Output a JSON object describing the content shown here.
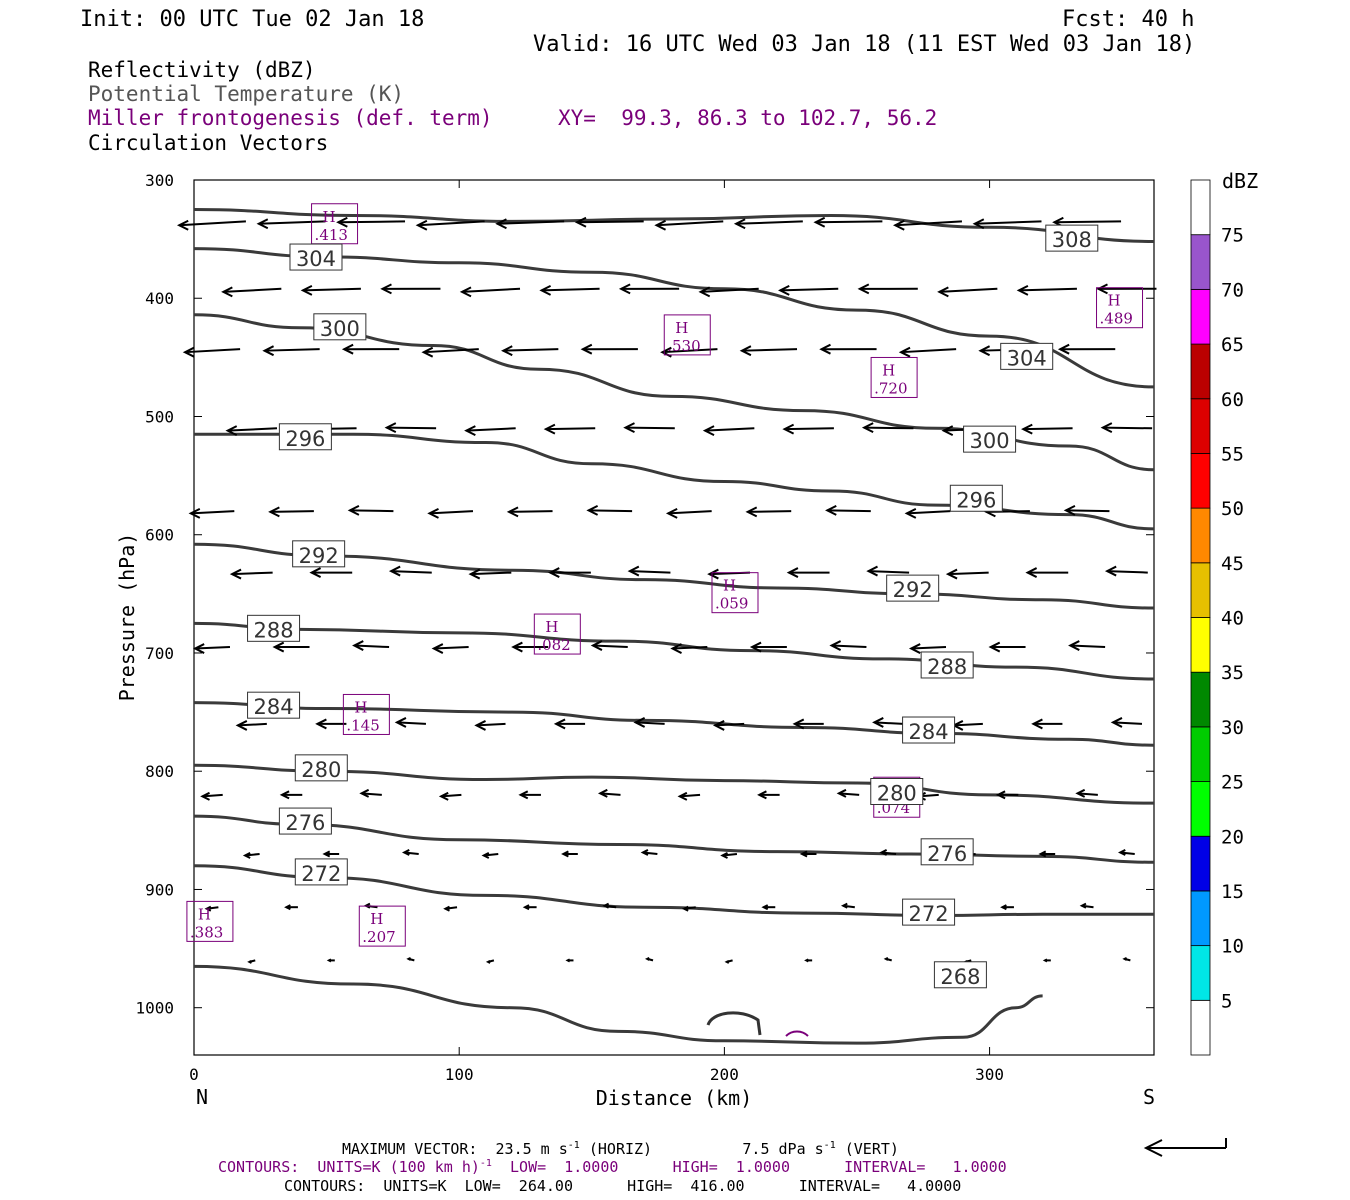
{
  "header": {
    "init": "Init: 00 UTC Tue 02 Jan 18",
    "fcst": "Fcst:   40 h",
    "valid": "Valid: 16 UTC Wed 03 Jan 18 (11 EST Wed 03 Jan 18)",
    "fields": [
      {
        "text": "Reflectivity (dBZ)",
        "color": "#000000"
      },
      {
        "text": "Potential Temperature (K)",
        "color": "#555555"
      },
      {
        "text": "Miller frontogenesis (def. term)",
        "color": "#7a007a"
      },
      {
        "text": "Circulation Vectors",
        "color": "#000000"
      }
    ],
    "xy": "XY=  99.3, 86.3 to 102.7, 56.2"
  },
  "footer": {
    "max_vector": "MAXIMUM VECTOR:  23.5 m s",
    "max_vector_mid": " (HORIZ)          7.5 dPa s",
    "max_vector_end": " (VERT)",
    "contours_fg": "CONTOURS:  UNITS=K (100 km h)",
    "contours_fg_end": "  LOW=  1.0000      HIGH=  1.0000      INTERVAL=   1.0000",
    "contours_theta": "CONTOURS:  UNITS=K  LOW=  264.00      HIGH=  416.00      INTERVAL=   4.0000",
    "sup": "-1"
  },
  "colorbar": {
    "title": "dBZ",
    "levels": [
      "5",
      "10",
      "15",
      "20",
      "25",
      "30",
      "35",
      "40",
      "45",
      "50",
      "55",
      "60",
      "65",
      "70",
      "75"
    ],
    "colors": [
      "#00e6e6",
      "#0099ff",
      "#0000e6",
      "#00ff00",
      "#00cc00",
      "#008800",
      "#ffff00",
      "#e6c000",
      "#ff8800",
      "#ff0000",
      "#dd0000",
      "#bb0000",
      "#ff00ff",
      "#9955cc",
      "#ffffff"
    ]
  },
  "chart_data": {
    "type": "line",
    "title": "",
    "xlabel": "Distance (km)",
    "ylabel": "Pressure (hPa)",
    "xlim": [
      0,
      362
    ],
    "ylim": [
      300,
      1040
    ],
    "x_ticks": [
      "0",
      "100",
      "200",
      "300"
    ],
    "y_ticks": [
      "300",
      "400",
      "500",
      "600",
      "700",
      "800",
      "900",
      "1000"
    ],
    "left_end_label": "N",
    "right_end_label": "S",
    "isentropes": [
      {
        "label": "308",
        "points": [
          [
            0,
            325
          ],
          [
            60,
            330
          ],
          [
            120,
            335
          ],
          [
            180,
            333
          ],
          [
            240,
            330
          ],
          [
            300,
            340
          ],
          [
            362,
            352
          ]
        ],
        "labels": [
          [
            331,
            350
          ]
        ]
      },
      {
        "label": "304",
        "points": [
          [
            0,
            358
          ],
          [
            50,
            365
          ],
          [
            100,
            370
          ],
          [
            150,
            378
          ],
          [
            200,
            392
          ],
          [
            250,
            410
          ],
          [
            300,
            432
          ],
          [
            362,
            475
          ]
        ],
        "labels": [
          [
            46,
            366
          ],
          [
            314,
            450
          ]
        ]
      },
      {
        "label": "300",
        "points": [
          [
            0,
            414
          ],
          [
            40,
            425
          ],
          [
            90,
            440
          ],
          [
            130,
            460
          ],
          [
            180,
            483
          ],
          [
            230,
            495
          ],
          [
            280,
            510
          ],
          [
            330,
            525
          ],
          [
            362,
            545
          ]
        ],
        "labels": [
          [
            55,
            425
          ],
          [
            300,
            520
          ]
        ]
      },
      {
        "label": "296",
        "points": [
          [
            0,
            515
          ],
          [
            60,
            515
          ],
          [
            110,
            522
          ],
          [
            150,
            540
          ],
          [
            200,
            555
          ],
          [
            240,
            563
          ],
          [
            280,
            575
          ],
          [
            330,
            583
          ],
          [
            362,
            595
          ]
        ],
        "labels": [
          [
            42,
            518
          ],
          [
            295,
            570
          ]
        ]
      },
      {
        "label": "292",
        "points": [
          [
            0,
            608
          ],
          [
            50,
            618
          ],
          [
            120,
            630
          ],
          [
            170,
            638
          ],
          [
            220,
            645
          ],
          [
            270,
            650
          ],
          [
            320,
            655
          ],
          [
            362,
            662
          ]
        ],
        "labels": [
          [
            47,
            617
          ],
          [
            271,
            646
          ]
        ]
      },
      {
        "label": "288",
        "points": [
          [
            0,
            675
          ],
          [
            40,
            680
          ],
          [
            100,
            683
          ],
          [
            160,
            690
          ],
          [
            210,
            698
          ],
          [
            260,
            705
          ],
          [
            310,
            712
          ],
          [
            362,
            722
          ]
        ],
        "labels": [
          [
            30,
            680
          ],
          [
            284,
            711
          ]
        ]
      },
      {
        "label": "284",
        "points": [
          [
            0,
            742
          ],
          [
            50,
            747
          ],
          [
            120,
            750
          ],
          [
            170,
            757
          ],
          [
            230,
            763
          ],
          [
            280,
            768
          ],
          [
            330,
            773
          ],
          [
            362,
            778
          ]
        ],
        "labels": [
          [
            30,
            745
          ],
          [
            277,
            766
          ]
        ]
      },
      {
        "label": "280",
        "points": [
          [
            0,
            795
          ],
          [
            50,
            800
          ],
          [
            110,
            807
          ],
          [
            150,
            805
          ],
          [
            200,
            808
          ],
          [
            250,
            810
          ],
          [
            300,
            820
          ],
          [
            362,
            827
          ]
        ],
        "labels": [
          [
            48,
            798
          ],
          [
            265,
            818
          ]
        ]
      },
      {
        "label": "276",
        "points": [
          [
            0,
            838
          ],
          [
            40,
            845
          ],
          [
            100,
            858
          ],
          [
            160,
            862
          ],
          [
            220,
            868
          ],
          [
            270,
            870
          ],
          [
            320,
            872
          ],
          [
            362,
            877
          ]
        ],
        "labels": [
          [
            42,
            843
          ],
          [
            284,
            869
          ]
        ]
      },
      {
        "label": "272",
        "points": [
          [
            0,
            880
          ],
          [
            50,
            890
          ],
          [
            110,
            905
          ],
          [
            170,
            915
          ],
          [
            230,
            920
          ],
          [
            280,
            922
          ],
          [
            320,
            921
          ],
          [
            362,
            921
          ]
        ],
        "labels": [
          [
            48,
            886
          ],
          [
            277,
            920
          ]
        ]
      },
      {
        "label": "268",
        "points": [
          [
            0,
            965
          ],
          [
            60,
            980
          ],
          [
            120,
            1000
          ],
          [
            160,
            1020
          ],
          [
            200,
            1028
          ],
          [
            250,
            1030
          ],
          [
            290,
            1025
          ],
          [
            310,
            1000
          ],
          [
            320,
            990
          ]
        ],
        "labels": [
          [
            289,
            973
          ]
        ]
      }
    ],
    "frontogenesis_maxima": [
      {
        "label": "H",
        "value": ".413",
        "x": 53,
        "y": 337
      },
      {
        "label": "H",
        "value": ".530",
        "x": 186,
        "y": 431
      },
      {
        "label": "H",
        "value": ".720",
        "x": 264,
        "y": 467
      },
      {
        "label": "H",
        "value": ".489",
        "x": 349,
        "y": 408
      },
      {
        "label": "H",
        "value": ".059",
        "x": 204,
        "y": 649
      },
      {
        "label": "H",
        "value": ".082",
        "x": 137,
        "y": 684
      },
      {
        "label": "H",
        "value": ".145",
        "x": 65,
        "y": 752
      },
      {
        "label": "H",
        "value": ".074",
        "x": 265,
        "y": 822
      },
      {
        "label": "H",
        "value": ".383",
        "x": 6,
        "y": 927
      },
      {
        "label": "H",
        "value": ".207",
        "x": 71,
        "y": 931
      }
    ],
    "vector_rows": [
      {
        "p": 335,
        "u": -23,
        "w": 0.3
      },
      {
        "p": 392,
        "u": -20,
        "w": 0.2
      },
      {
        "p": 443,
        "u": -19,
        "w": 0.2
      },
      {
        "p": 510,
        "u": -17,
        "w": 0.1
      },
      {
        "p": 580,
        "u": -15,
        "w": 0.1
      },
      {
        "p": 632,
        "u": -14,
        "w": 0.0
      },
      {
        "p": 695,
        "u": -12,
        "w": 0.0
      },
      {
        "p": 760,
        "u": -10,
        "w": 0.0
      },
      {
        "p": 820,
        "u": -7,
        "w": 0.0
      },
      {
        "p": 870,
        "u": -5,
        "w": 0.0
      },
      {
        "p": 915,
        "u": -4,
        "w": 0.0
      },
      {
        "p": 960,
        "u": -2,
        "w": 0.0
      }
    ]
  }
}
